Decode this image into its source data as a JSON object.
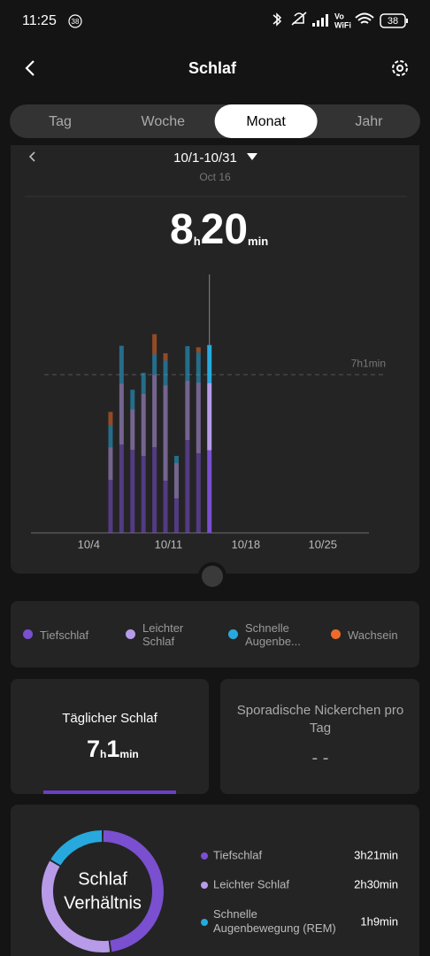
{
  "status_bar": {
    "time": "11:25",
    "notification_count": "38",
    "network_lines": [
      "Vo",
      "WiFi"
    ],
    "battery": "38"
  },
  "header": {
    "title": "Schlaf"
  },
  "tabs": {
    "items": [
      "Tag",
      "Woche",
      "Monat",
      "Jahr"
    ],
    "active": 2
  },
  "period": {
    "range": "10/1-10/31",
    "selected_date": "Oct 16"
  },
  "summary": {
    "hours": 8,
    "hours_unit": "h",
    "minutes": 20,
    "minutes_unit": "min"
  },
  "chart_data": {
    "type": "bar",
    "stacked": true,
    "x": [
      7,
      8,
      9,
      10,
      11,
      12,
      13,
      14,
      15,
      16
    ],
    "series": [
      {
        "name": "Tiefschlaf",
        "color": "#7a4fd0",
        "values": [
          141,
          235,
          221,
          205,
          228,
          139,
          92,
          247,
          212,
          220
        ]
      },
      {
        "name": "Leichter Schlaf",
        "color": "#b79be8",
        "values": [
          87,
          162,
          108,
          165,
          193,
          254,
          94,
          158,
          188,
          179
        ]
      },
      {
        "name": "Schnelle Augenbe...",
        "color": "#27a9dd",
        "values": [
          59,
          101,
          52,
          56,
          54,
          66,
          19,
          92,
          80,
          101
        ]
      },
      {
        "name": "Wachsein",
        "color": "#ee6a2a",
        "values": [
          35,
          0,
          0,
          0,
          54,
          19,
          0,
          0,
          14,
          0
        ]
      }
    ],
    "xlim": [
      0,
      31
    ],
    "xticks": [
      {
        "value": 4,
        "label": "10/4"
      },
      {
        "value": 11,
        "label": "10/11"
      },
      {
        "value": 18,
        "label": "10/18"
      },
      {
        "value": 25,
        "label": "10/25"
      }
    ],
    "ylim": [
      0,
      900
    ],
    "reference": {
      "value": 421,
      "label": "7h1min"
    },
    "selected": 9
  },
  "daily_sleep": {
    "title": "Täglicher Schlaf",
    "hours": 7,
    "hours_unit": "h",
    "minutes": 1,
    "minutes_unit": "min"
  },
  "naps": {
    "title": "Sporadische Nickerchen pro Tag",
    "value": "- -"
  },
  "ratio": {
    "type": "pie",
    "title": "Schlaf Verhältnis",
    "categories": [
      "Tiefschlaf",
      "Leichter Schlaf",
      "Schnelle Augenbewegung (REM)"
    ],
    "colors": [
      "#7a4fd0",
      "#b79be8",
      "#27a9dd"
    ],
    "values": [
      201,
      150,
      69
    ],
    "value_labels": [
      "3h21min",
      "2h30min",
      "1h9min"
    ]
  }
}
